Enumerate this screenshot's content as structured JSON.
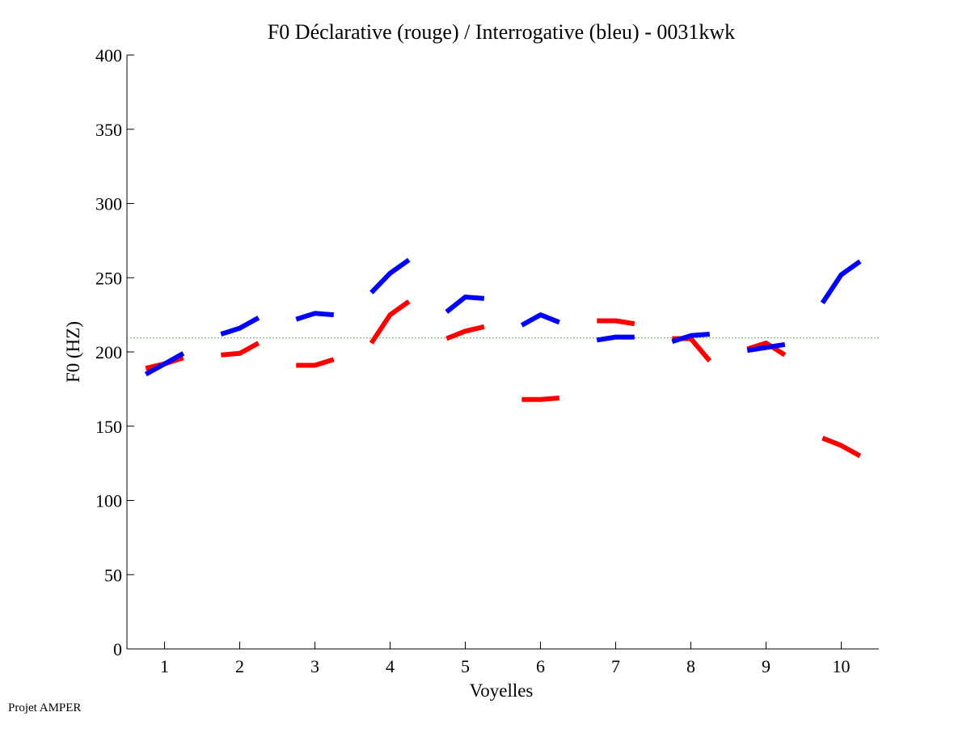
{
  "footer": "Projet AMPER",
  "chart_data": {
    "type": "line",
    "title": "F0 Déclarative (rouge) / Interrogative (bleu) - 0031kwk",
    "xlabel": "Voyelles",
    "ylabel": "F0 (HZ)",
    "xlim": [
      0.5,
      10.5
    ],
    "ylim": [
      0,
      400
    ],
    "xticks": [
      1,
      2,
      3,
      4,
      5,
      6,
      7,
      8,
      9,
      10
    ],
    "yticks": [
      0,
      50,
      100,
      150,
      200,
      250,
      300,
      350,
      400
    ],
    "grid": false,
    "reference_line": {
      "name": "mean",
      "y": 209.5,
      "color": "#00c000",
      "style": "dotted"
    },
    "series": [
      {
        "name": "Déclarative",
        "color": "#ff0000",
        "segments": [
          {
            "vowel": 1,
            "x": [
              0.75,
              1.0,
              1.25
            ],
            "y": [
              189,
              192,
              196
            ]
          },
          {
            "vowel": 2,
            "x": [
              1.75,
              2.0,
              2.25
            ],
            "y": [
              198,
              199,
              206
            ]
          },
          {
            "vowel": 3,
            "x": [
              2.75,
              3.0,
              3.25
            ],
            "y": [
              191,
              191,
              195
            ]
          },
          {
            "vowel": 4,
            "x": [
              3.75,
              4.0,
              4.25
            ],
            "y": [
              206,
              225,
              234
            ]
          },
          {
            "vowel": 5,
            "x": [
              4.75,
              5.0,
              5.25
            ],
            "y": [
              209,
              214,
              217
            ]
          },
          {
            "vowel": 6,
            "x": [
              5.75,
              6.0,
              6.25
            ],
            "y": [
              168,
              168,
              169
            ]
          },
          {
            "vowel": 7,
            "x": [
              6.75,
              7.0,
              7.25
            ],
            "y": [
              221,
              221,
              219
            ]
          },
          {
            "vowel": 8,
            "x": [
              7.75,
              8.0,
              8.25
            ],
            "y": [
              209,
              209,
              194
            ]
          },
          {
            "vowel": 9,
            "x": [
              8.75,
              9.0,
              9.25
            ],
            "y": [
              202,
              206,
              198
            ]
          },
          {
            "vowel": 10,
            "x": [
              9.75,
              10.0,
              10.25
            ],
            "y": [
              142,
              137,
              130
            ]
          }
        ]
      },
      {
        "name": "Interrogative",
        "color": "#0000ff",
        "segments": [
          {
            "vowel": 1,
            "x": [
              0.75,
              1.0,
              1.25
            ],
            "y": [
              185,
              192,
              199
            ]
          },
          {
            "vowel": 2,
            "x": [
              1.75,
              2.0,
              2.25
            ],
            "y": [
              212,
              216,
              223
            ]
          },
          {
            "vowel": 3,
            "x": [
              2.75,
              3.0,
              3.25
            ],
            "y": [
              222,
              226,
              225
            ]
          },
          {
            "vowel": 4,
            "x": [
              3.75,
              4.0,
              4.25
            ],
            "y": [
              240,
              253,
              262
            ]
          },
          {
            "vowel": 5,
            "x": [
              4.75,
              5.0,
              5.25
            ],
            "y": [
              227,
              237,
              236
            ]
          },
          {
            "vowel": 6,
            "x": [
              5.75,
              6.0,
              6.25
            ],
            "y": [
              218,
              225,
              220
            ]
          },
          {
            "vowel": 7,
            "x": [
              6.75,
              7.0,
              7.25
            ],
            "y": [
              208,
              210,
              210
            ]
          },
          {
            "vowel": 8,
            "x": [
              7.75,
              8.0,
              8.25
            ],
            "y": [
              207,
              211,
              212
            ]
          },
          {
            "vowel": 9,
            "x": [
              8.75,
              9.0,
              9.25
            ],
            "y": [
              201,
              203,
              205
            ]
          },
          {
            "vowel": 10,
            "x": [
              9.75,
              10.0,
              10.25
            ],
            "y": [
              233,
              252,
              261
            ]
          }
        ]
      }
    ]
  }
}
